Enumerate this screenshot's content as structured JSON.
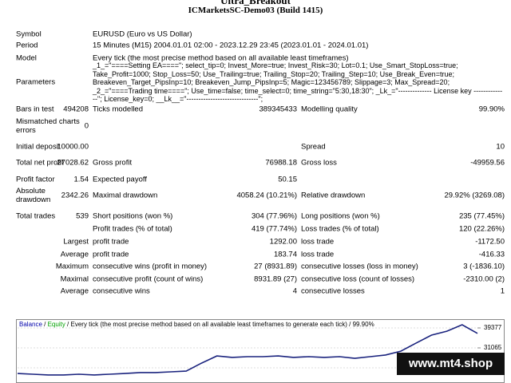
{
  "header": {
    "title": "Ultra_Breakout",
    "server": "ICMarketsSC-Demo03 (Build 1415)"
  },
  "rows": [
    {
      "l1": "Symbol",
      "l2": "EURUSD (Euro vs US Dollar)"
    },
    {
      "l1": "Period",
      "l2": "15 Minutes (M15) 2004.01.01 02:00 - 2023.12.29 23:45 (2023.01.01 - 2024.01.01)"
    },
    {
      "l1": "Model",
      "l2": "Every tick (the most precise method based on all available least timeframes)"
    },
    {
      "l1": "Parameters",
      "l2": "_1_=\"====Setting EA====\"; select_tip=0; Invest_More=true; Invest_Risk=30; Lot=0.1; Use_Smart_StopLoss=true; Take_Profit=1000; Stop_Loss=50; Use_Trailing=true; Trailing_Stop=20; Trailing_Step=10; Use_Break_Even=true; Breakeven_Target_PipsInp=10; Breakeven_Jump_PipsInp=5; Magic=123456789; Slippage=3; Max_Spread=20; _2_=\"====Trading time====\"; Use_time=false; time_select=0; time_string=\"5:30,18:30\"; _Lk_=\"-------------- License key --------------\"; License_key=0; __Lk__=\"------------------------------\";"
    },
    {
      "l1": "Bars in test",
      "v1": "494208",
      "l2": "Ticks modelled",
      "v2": "389345433",
      "l3": "Modelling quality",
      "v3": "99.90%"
    },
    {
      "l1": "Mismatched charts errors",
      "v1": "0"
    },
    {
      "l1": "Initial deposit",
      "v1": "10000.00",
      "l3": "Spread",
      "v3": "10"
    },
    {
      "l1": "Total net profit",
      "v1": "27028.62",
      "l2": "Gross profit",
      "v2": "76988.18",
      "l3": "Gross loss",
      "v3": "-49959.56"
    },
    {
      "l1": "Profit factor",
      "v1": "1.54",
      "l2": "Expected payoff",
      "v2": "50.15"
    },
    {
      "l1": "Absolute drawdown",
      "v1": "2342.26",
      "l2": "Maximal drawdown",
      "v2": "4058.24 (10.21%)",
      "l3": "Relative drawdown",
      "v3": "29.92% (3269.08)"
    },
    {
      "l1": "Total trades",
      "v1": "539",
      "l2": "Short positions (won %)",
      "v2": "304 (77.96%)",
      "l3": "Long positions (won %)",
      "v3": "235 (77.45%)"
    },
    {
      "l2": "Profit trades (% of total)",
      "v2": "419 (77.74%)",
      "l3": "Loss trades (% of total)",
      "v3": "120 (22.26%)"
    },
    {
      "v1": "Largest",
      "l2": "profit trade",
      "v2": "1292.00",
      "l3": "loss trade",
      "v3": "-1172.50"
    },
    {
      "v1": "Average",
      "l2": "profit trade",
      "v2": "183.74",
      "l3": "loss trade",
      "v3": "-416.33"
    },
    {
      "v1": "Maximum",
      "l2": "consecutive wins (profit in money)",
      "v2": "27 (8931.89)",
      "l3": "consecutive losses (loss in money)",
      "v3": "3 (-1836.10)"
    },
    {
      "v1": "Maximal",
      "l2": "consecutive profit (count of wins)",
      "v2": "8931.89 (27)",
      "l3": "consecutive loss (count of losses)",
      "v3": "-2310.00 (2)"
    },
    {
      "v1": "Average",
      "l2": "consecutive wins",
      "v2": "4",
      "l3": "consecutive losses",
      "v3": "1"
    }
  ],
  "chart": {
    "legend": [
      "Balance",
      "Equity",
      "Every tick (the most precise method based on all available least timeframes to generate each tick)",
      "99.90%"
    ],
    "legend_separator": " / ",
    "legend_colors": [
      "#0000aa",
      "#00a000",
      "#000",
      "#000"
    ],
    "color": "#1a237e",
    "ylim": [
      16437,
      43034
    ],
    "yticks": [
      39377,
      31065,
      22754
    ],
    "grid": true,
    "values": [
      20400,
      20100,
      19800,
      19800,
      20100,
      19800,
      20100,
      20400,
      20800,
      20800,
      21100,
      21400,
      24700,
      27700,
      27100,
      27400,
      27400,
      27700,
      27100,
      27400,
      27100,
      27400,
      26700,
      27400,
      28100,
      29700,
      33100,
      36400,
      38000,
      40700,
      37100
    ]
  },
  "watermark": "www.mt4.shop"
}
